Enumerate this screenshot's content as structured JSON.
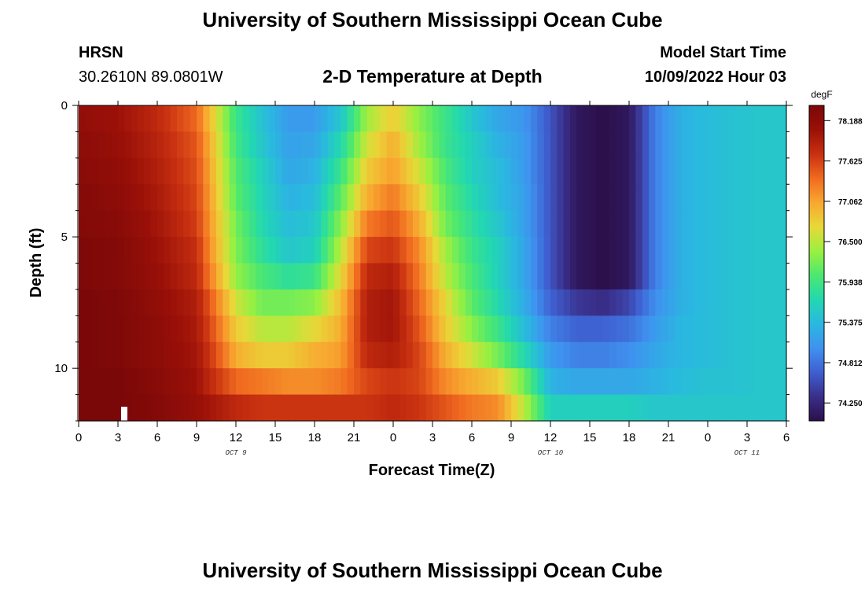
{
  "header": {
    "title": "University of Southern Mississippi Ocean Cube",
    "station": "HRSN",
    "coords": "30.2610N  89.0801W",
    "subtitle": "2-D Temperature at Depth",
    "start_label": "Model Start Time",
    "start_value": "10/09/2022 Hour 03"
  },
  "footer": {
    "title": "University of Southern Mississippi Ocean Cube"
  },
  "chart_data": {
    "type": "heatmap",
    "title": "2-D Temperature at Depth",
    "xlabel": "Forecast Time(Z)",
    "ylabel": "Depth (ft)",
    "x_unit": "hours from 00Z Oct 9",
    "xlim": [
      0,
      54
    ],
    "ylim": [
      0,
      12
    ],
    "y_inverted": true,
    "x_tick_labels": [
      "0",
      "3",
      "6",
      "9",
      "12",
      "15",
      "18",
      "21",
      "0",
      "3",
      "6",
      "9",
      "12",
      "15",
      "18",
      "21",
      "0",
      "3",
      "6"
    ],
    "y_ticks": [
      0,
      5,
      10
    ],
    "date_labels": [
      {
        "text": "OCT 9",
        "hour": 12
      },
      {
        "text": "OCT 10",
        "hour": 36
      },
      {
        "text": "OCT 11",
        "hour": 51
      }
    ],
    "colorbar": {
      "unit": "degF",
      "min": 74.0,
      "max": 78.4,
      "tick_values": [
        "78.188",
        "77.625",
        "77.062",
        "76.500",
        "75.938",
        "75.375",
        "74.812",
        "74.250"
      ],
      "colors": [
        "#2b0f4a",
        "#3a2f8a",
        "#3f5fd0",
        "#3f92f0",
        "#2ab8e0",
        "#22d8b0",
        "#4ce870",
        "#9af040",
        "#e8d838",
        "#f8a830",
        "#f06a20",
        "#c83010",
        "#9a1008",
        "#7a0808"
      ]
    },
    "depth_levels": [
      0.5,
      1.5,
      2.5,
      3.5,
      4.5,
      5.5,
      6.5,
      7.5,
      8.5,
      9.5,
      10.5,
      11.5
    ],
    "anchor_times": [
      0,
      3,
      6,
      9,
      10,
      12,
      14,
      16,
      18,
      20,
      22,
      24,
      26,
      28,
      30,
      32,
      34,
      36,
      38,
      40,
      42,
      44,
      46,
      48,
      50,
      52,
      54
    ],
    "temperature_degF": [
      [
        78.15,
        78.05,
        77.8,
        77.4,
        76.9,
        75.9,
        75.45,
        75.1,
        75.1,
        75.5,
        76.4,
        76.8,
        76.3,
        75.9,
        75.5,
        75.2,
        75.05,
        74.6,
        74.1,
        74.0,
        74.1,
        74.9,
        75.3,
        75.4,
        75.45,
        75.5,
        75.5
      ],
      [
        78.2,
        78.1,
        77.85,
        77.5,
        77.0,
        75.95,
        75.5,
        75.15,
        75.2,
        75.7,
        76.6,
        77.0,
        76.4,
        75.9,
        75.6,
        75.3,
        75.1,
        74.6,
        74.1,
        74.0,
        74.1,
        74.9,
        75.3,
        75.4,
        75.45,
        75.5,
        75.5
      ],
      [
        78.25,
        78.15,
        77.9,
        77.55,
        77.05,
        76.05,
        75.6,
        75.2,
        75.3,
        75.9,
        76.8,
        77.1,
        76.6,
        76.0,
        75.6,
        75.4,
        75.1,
        74.6,
        74.1,
        74.0,
        74.1,
        74.9,
        75.3,
        75.4,
        75.45,
        75.5,
        75.5
      ],
      [
        78.3,
        78.2,
        77.95,
        77.6,
        77.1,
        76.1,
        75.65,
        75.3,
        75.4,
        76.1,
        77.0,
        77.3,
        76.8,
        76.1,
        75.7,
        75.4,
        75.15,
        74.6,
        74.1,
        74.0,
        74.1,
        74.9,
        75.3,
        75.4,
        75.45,
        75.5,
        75.5
      ],
      [
        78.3,
        78.25,
        78.0,
        77.65,
        77.15,
        76.2,
        75.7,
        75.4,
        75.5,
        76.3,
        77.3,
        77.5,
        77.0,
        76.2,
        75.8,
        75.5,
        75.15,
        74.6,
        74.1,
        74.0,
        74.1,
        74.9,
        75.3,
        75.4,
        75.45,
        75.5,
        75.5
      ],
      [
        78.35,
        78.3,
        78.05,
        77.75,
        77.2,
        76.25,
        75.8,
        75.5,
        75.6,
        76.5,
        77.6,
        77.7,
        77.2,
        76.4,
        75.9,
        75.6,
        75.2,
        74.6,
        74.1,
        74.0,
        74.1,
        74.9,
        75.3,
        75.4,
        75.45,
        75.5,
        75.5
      ],
      [
        78.35,
        78.3,
        78.1,
        77.8,
        77.3,
        76.35,
        76.0,
        75.8,
        75.9,
        76.7,
        77.8,
        77.9,
        77.3,
        76.5,
        76.0,
        75.6,
        75.2,
        74.6,
        74.1,
        74.0,
        74.1,
        74.9,
        75.3,
        75.4,
        75.45,
        75.5,
        75.5
      ],
      [
        78.4,
        78.35,
        78.15,
        77.9,
        77.5,
        76.6,
        76.2,
        76.2,
        76.3,
        76.9,
        77.9,
        78.0,
        77.4,
        76.7,
        76.1,
        75.7,
        75.25,
        74.7,
        74.4,
        74.3,
        74.5,
        75.0,
        75.3,
        75.4,
        75.45,
        75.5,
        75.5
      ],
      [
        78.4,
        78.35,
        78.2,
        77.95,
        77.6,
        76.8,
        76.5,
        76.5,
        76.7,
        77.0,
        77.9,
        78.0,
        77.5,
        76.8,
        76.3,
        75.9,
        75.4,
        74.9,
        74.7,
        74.7,
        74.8,
        75.1,
        75.35,
        75.4,
        75.45,
        75.5,
        75.5
      ],
      [
        78.4,
        78.35,
        78.2,
        78.0,
        77.7,
        77.0,
        76.8,
        76.8,
        77.0,
        77.1,
        77.8,
        77.9,
        77.6,
        77.0,
        76.6,
        76.2,
        75.7,
        75.1,
        74.9,
        74.9,
        75.0,
        75.2,
        75.35,
        75.4,
        75.45,
        75.5,
        75.5
      ],
      [
        78.4,
        78.4,
        78.25,
        78.05,
        77.8,
        77.4,
        77.3,
        77.2,
        77.2,
        77.3,
        77.6,
        77.7,
        77.6,
        77.2,
        77.0,
        76.8,
        76.2,
        75.3,
        75.2,
        75.2,
        75.2,
        75.3,
        75.4,
        75.45,
        75.45,
        75.5,
        75.5
      ],
      [
        78.4,
        78.4,
        78.3,
        78.1,
        78.0,
        77.8,
        77.7,
        77.7,
        77.7,
        77.7,
        77.7,
        77.8,
        77.7,
        77.5,
        77.3,
        77.2,
        76.5,
        75.6,
        75.6,
        75.6,
        75.6,
        75.5,
        75.5,
        75.5,
        75.5,
        75.5,
        75.5
      ]
    ]
  }
}
